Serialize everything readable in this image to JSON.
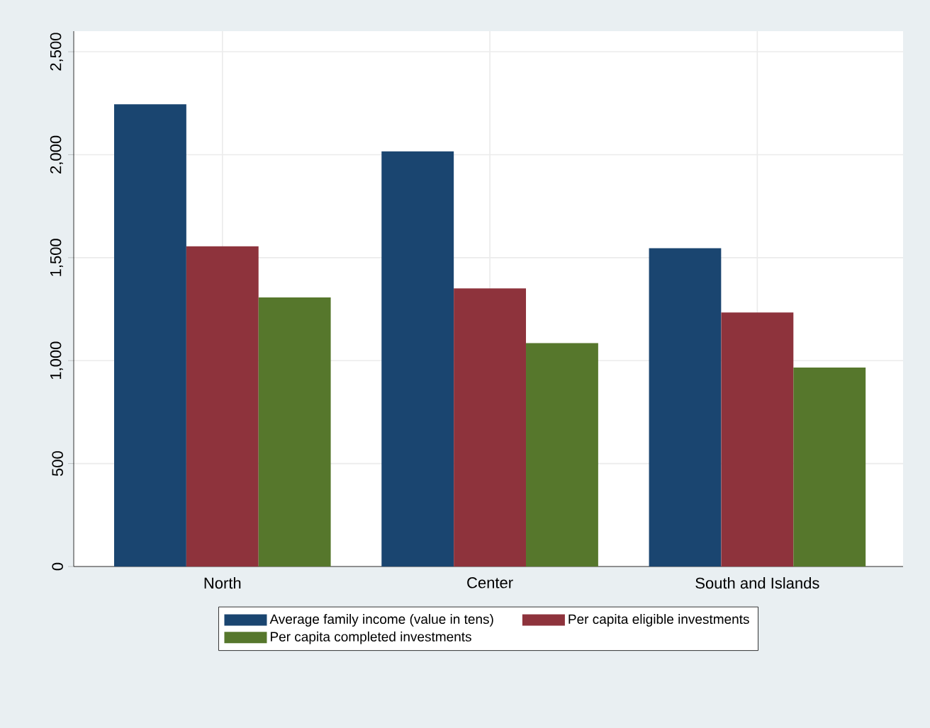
{
  "chart_data": {
    "type": "bar",
    "categories": [
      "North",
      "Center",
      "South and Islands"
    ],
    "series": [
      {
        "name": "Average family income (value in tens)",
        "color": "#1a4570",
        "values": [
          2245,
          2016,
          1546
        ]
      },
      {
        "name": "Per capita eligible investments",
        "color": "#8e333c",
        "values": [
          1555,
          1351,
          1234
        ]
      },
      {
        "name": "Per capita completed investments",
        "color": "#56772c",
        "values": [
          1307,
          1085,
          966
        ]
      }
    ],
    "ylim": [
      0,
      2600
    ],
    "yticks": [
      0,
      500,
      {
        "value": 1000,
        "label": "1,000"
      },
      {
        "value": 1500,
        "label": "1,500"
      },
      {
        "value": 2000,
        "label": "2,000"
      },
      {
        "value": 2500,
        "label": "2,500"
      }
    ],
    "grid": true,
    "legend": "bottom"
  }
}
